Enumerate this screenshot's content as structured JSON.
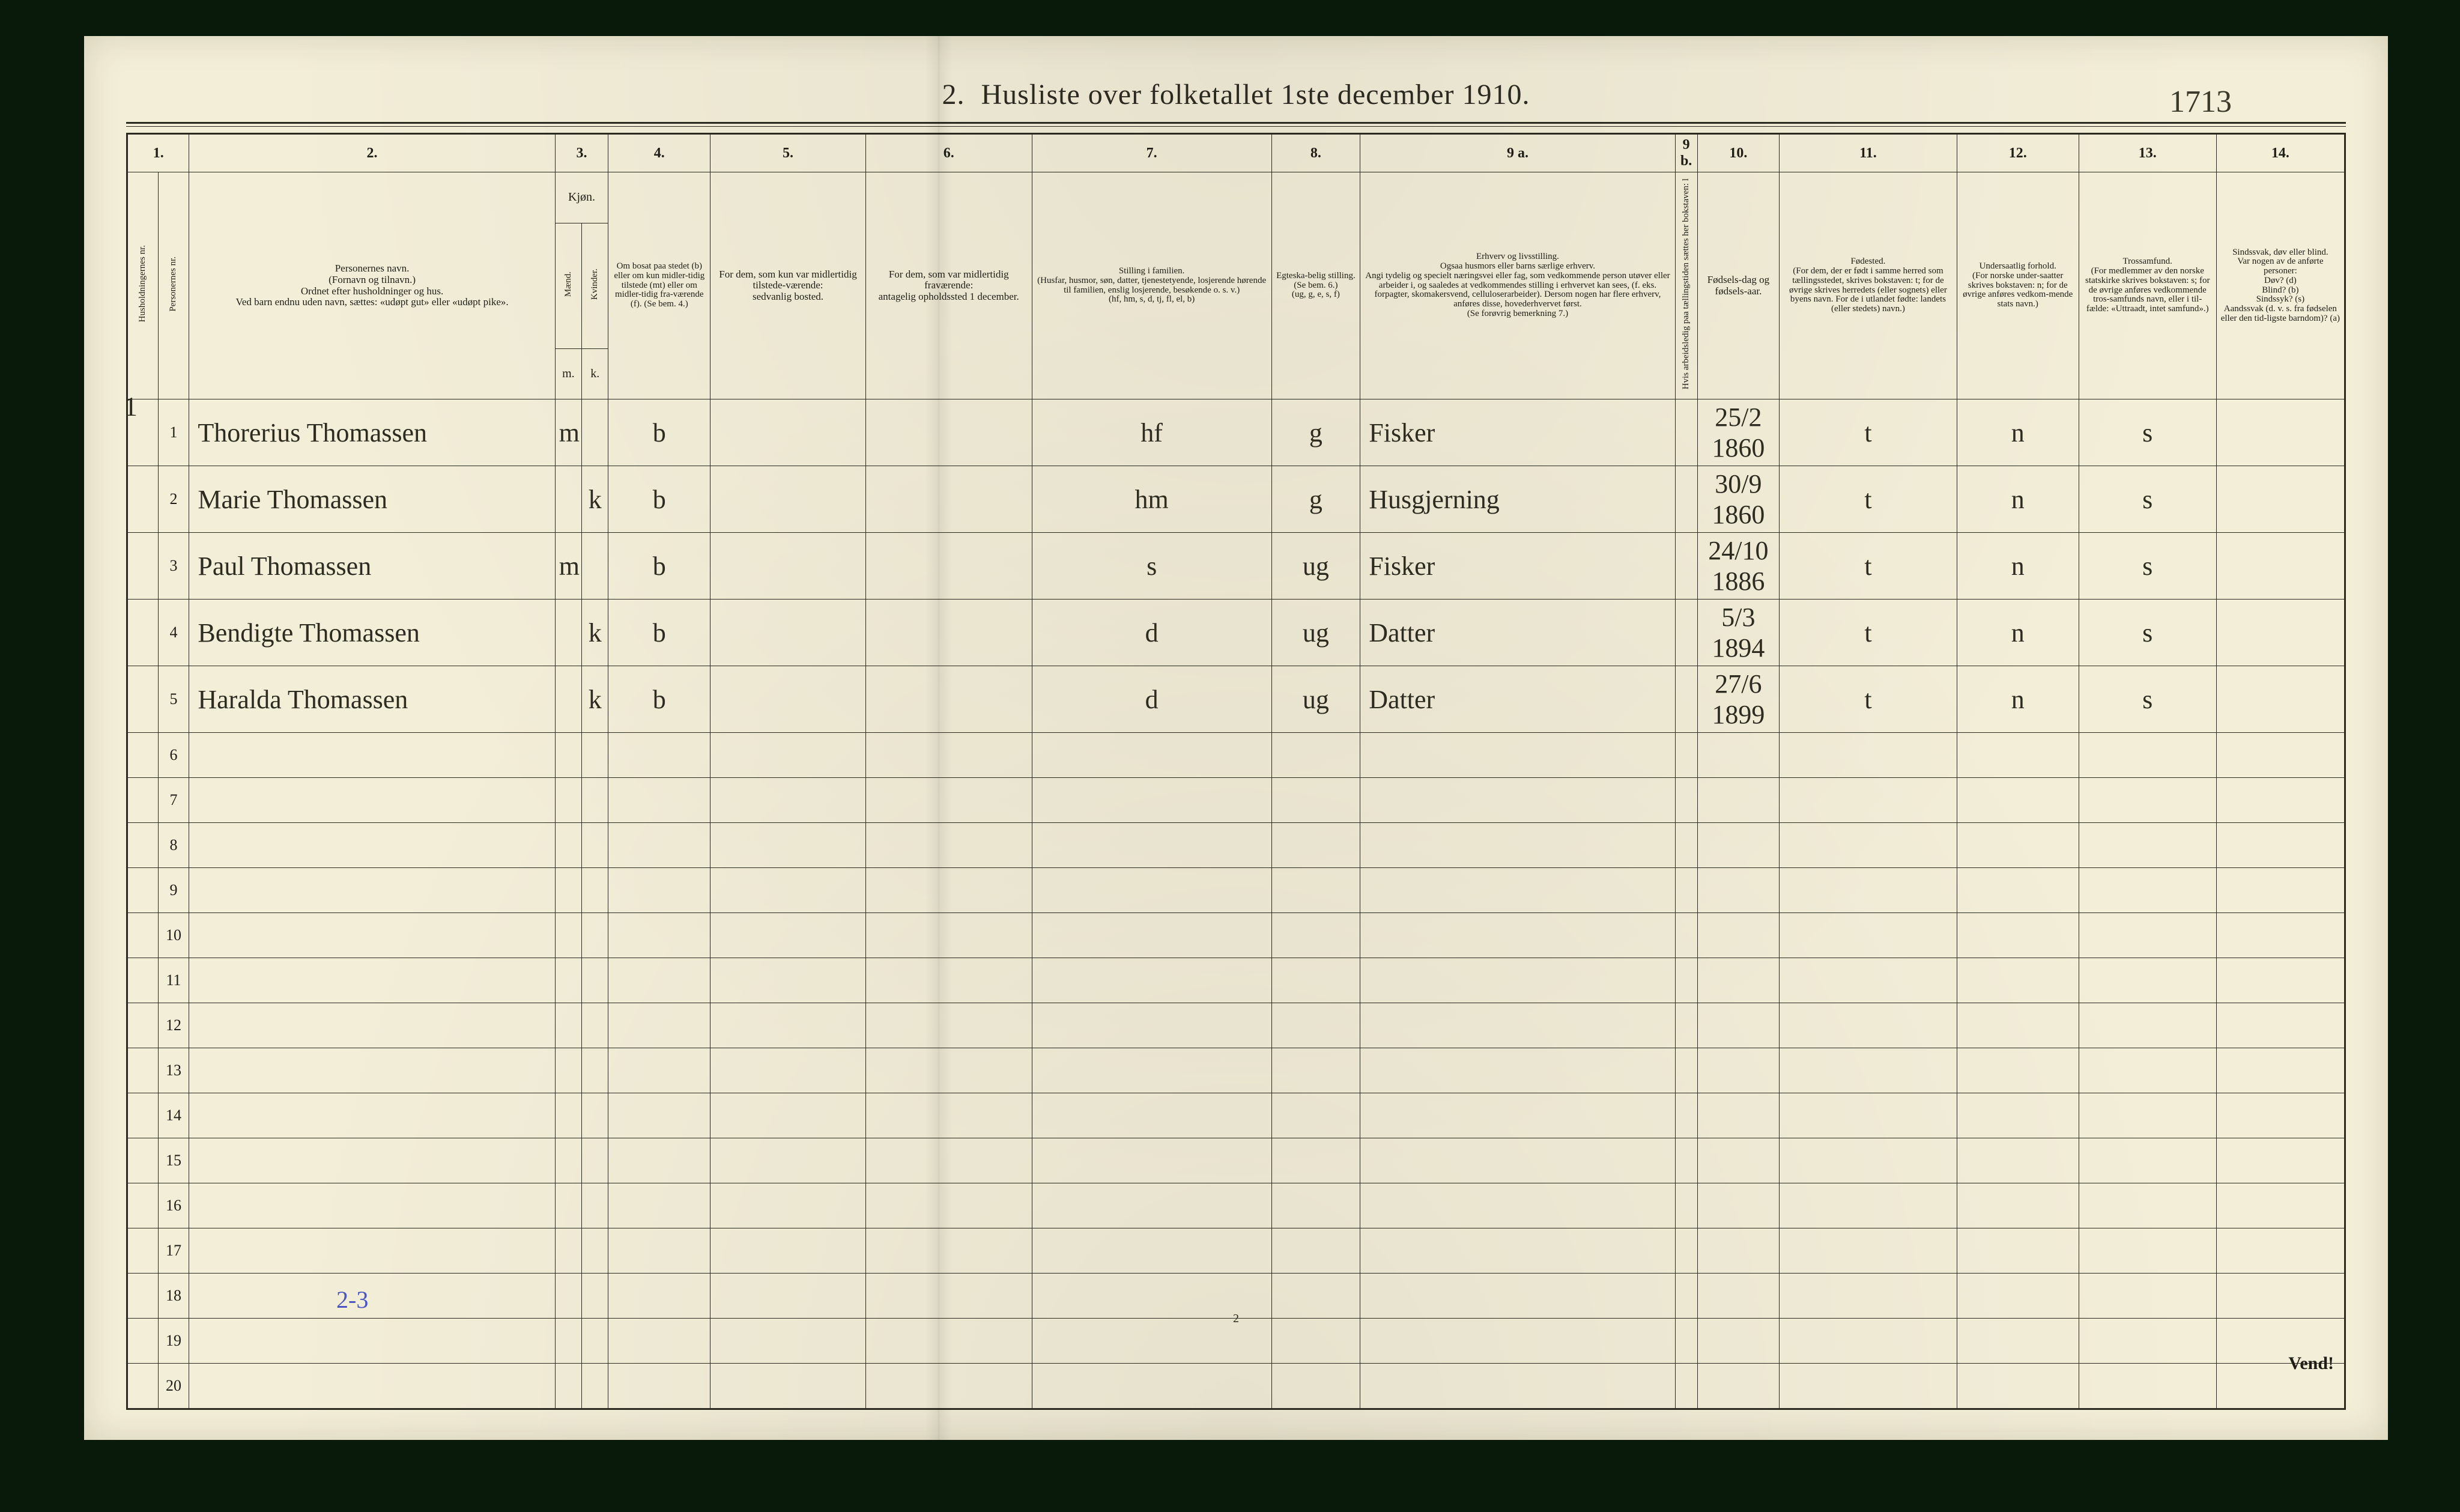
{
  "page_number_handwritten": "1713",
  "title_prefix": "2.",
  "title": "Husliste over folketallet 1ste december 1910.",
  "bottom_small": "2",
  "bottom_blue": "2-3",
  "vend": "Vend!",
  "household_mark": "1",
  "col_numbers": [
    "1.",
    "2.",
    "3.",
    "4.",
    "5.",
    "6.",
    "7.",
    "8.",
    "9 a.",
    "9 b.",
    "10.",
    "11.",
    "12.",
    "13.",
    "14."
  ],
  "headers": {
    "husholdning": "Husholdningernes nr.",
    "personer_nr": "Personernes nr.",
    "navn": "Personernes navn.\n(Fornavn og tilnavn.)\nOrdnet efter husholdninger og hus.\nVed barn endnu uden navn, sættes: «udøpt gut» eller «udøpt pike».",
    "kjon": "Kjøn.",
    "maend": "Mænd.",
    "kvinder": "Kvinder.",
    "m": "m.",
    "k": "k.",
    "bosat": "Om bosat paa stedet (b) eller om kun midler-tidig tilstede (mt) eller om midler-tidig fra-værende (f). (Se bem. 4.)",
    "sedvanlig": "For dem, som kun var midlertidig tilstede-værende:\nsedvanlig bosted.",
    "fravaer": "For dem, som var midlertidig fraværende:\nantagelig opholdssted 1 december.",
    "familie": "Stilling i familien.\n(Husfar, husmor, søn, datter, tjenestetyende, losjerende hørende til familien, enslig losjerende, besøkende o. s. v.)\n(hf, hm, s, d, tj, fl, el, b)",
    "egte": "Egteska-belig stilling.\n(Se bem. 6.)\n(ug, g, e, s, f)",
    "erhverv": "Erhverv og livsstilling.\nOgsaa husmors eller barns særlige erhverv.\nAngi tydelig og specielt næringsvei eller fag, som vedkommende person utøver eller arbeider i, og saaledes at vedkommendes stilling i erhvervet kan sees, (f. eks. forpagter, skomakersvend, celluloserarbeider). Dersom nogen har flere erhverv, anføres disse, hovederhvervet først.\n(Se forøvrig bemerkning 7.)",
    "col9b": "Hvis arbeidsledig paa tællingstiden sættes her bokstaven: l",
    "fodsel": "Fødsels-dag og fødsels-aar.",
    "fodested": "Fødested.\n(For dem, der er født i samme herred som tællingsstedet, skrives bokstaven: t; for de øvrige skrives herredets (eller sognets) eller byens navn. For de i utlandet fødte: landets (eller stedets) navn.)",
    "undersaat": "Undersaatlig forhold.\n(For norske under-saatter skrives bokstaven: n; for de øvrige anføres vedkom-mende stats navn.)",
    "tros": "Trossamfund.\n(For medlemmer av den norske statskirke skrives bokstaven: s; for de øvrige anføres vedkommende tros-samfunds navn, eller i til-fælde: «Uttraadt, intet samfund».)",
    "sind": "Sindssvak, døv eller blind.\nVar nogen av de anførte personer:\nDøv? (d)\nBlind? (b)\nSindssyk? (s)\nAandssvak (d. v. s. fra fødselen eller den tid-ligste barndom)? (a)"
  },
  "rows": [
    {
      "p": "1",
      "navn": "Thorerius Thomassen",
      "m": "m",
      "k": "",
      "b": "b",
      "sed": "",
      "frav": "",
      "fam": "hf",
      "eg": "g",
      "erhv": "Fisker",
      "l": "",
      "fd": "25/2 1860",
      "fs": "t",
      "u": "n",
      "tr": "s",
      "si": ""
    },
    {
      "p": "2",
      "navn": "Marie Thomassen",
      "m": "",
      "k": "k",
      "b": "b",
      "sed": "",
      "frav": "",
      "fam": "hm",
      "eg": "g",
      "erhv": "Husgjerning",
      "l": "",
      "fd": "30/9 1860",
      "fs": "t",
      "u": "n",
      "tr": "s",
      "si": ""
    },
    {
      "p": "3",
      "navn": "Paul Thomassen",
      "m": "m",
      "k": "",
      "b": "b",
      "sed": "",
      "frav": "",
      "fam": "s",
      "eg": "ug",
      "erhv": "Fisker",
      "l": "",
      "fd": "24/10 1886",
      "fs": "t",
      "u": "n",
      "tr": "s",
      "si": ""
    },
    {
      "p": "4",
      "navn": "Bendigte Thomassen",
      "m": "",
      "k": "k",
      "b": "b",
      "sed": "",
      "frav": "",
      "fam": "d",
      "eg": "ug",
      "erhv": "Datter",
      "l": "",
      "fd": "5/3 1894",
      "fs": "t",
      "u": "n",
      "tr": "s",
      "si": ""
    },
    {
      "p": "5",
      "navn": "Haralda Thomassen",
      "m": "",
      "k": "k",
      "b": "b",
      "sed": "",
      "frav": "",
      "fam": "d",
      "eg": "ug",
      "erhv": "Datter",
      "l": "",
      "fd": "27/6 1899",
      "fs": "t",
      "u": "n",
      "tr": "s",
      "si": ""
    }
  ],
  "printed_row_numbers": [
    "1",
    "2",
    "3",
    "4",
    "5",
    "6",
    "7",
    "8",
    "9",
    "10",
    "11",
    "12",
    "13",
    "14",
    "15",
    "16",
    "17",
    "18",
    "19",
    "20"
  ],
  "colors": {
    "paper": "#f3eed8",
    "ink": "#2a2a20",
    "hand": "#2c2c20",
    "bluepen": "#4a56c4",
    "background": "#0a1a0a"
  }
}
